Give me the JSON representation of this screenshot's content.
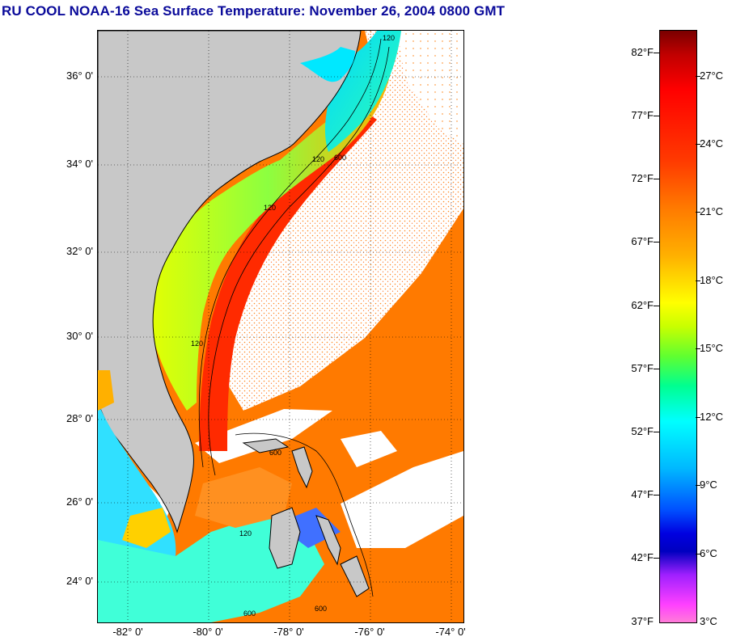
{
  "title": "RU COOL  NOAA-16  Sea Surface Temperature:  November 26, 2004 0800 GMT",
  "map": {
    "latitude_labels": [
      "36° 0'",
      "34° 0'",
      "32° 0'",
      "30° 0'",
      "28° 0'",
      "26° 0'",
      "24° 0'"
    ],
    "longitude_labels": [
      "-82° 0'",
      "-80° 0'",
      "-78° 0'",
      "-76° 0'",
      "-74° 0'"
    ],
    "contour_labels": [
      "120",
      "120",
      "120",
      "120",
      "120",
      "600",
      "600",
      "600",
      "600"
    ],
    "colors": {
      "land": "#c8c8c8",
      "cloud": "#ffffff",
      "gulf_stream": "#ff2a00",
      "offshore": "#ff7a00",
      "shelf_cool": "#00ffd0",
      "shelf_mid": "#e6ff00"
    }
  },
  "colorbar": {
    "fahrenheit_labels": [
      "82°F",
      "77°F",
      "72°F",
      "67°F",
      "62°F",
      "57°F",
      "52°F",
      "47°F",
      "42°F",
      "37°F"
    ],
    "celsius_labels": [
      "27°C",
      "24°C",
      "21°C",
      "18°C",
      "15°C",
      "12°C",
      "9°C",
      "6°C",
      "3°C"
    ],
    "range_f": [
      37,
      84
    ],
    "range_c": [
      3,
      29
    ]
  }
}
